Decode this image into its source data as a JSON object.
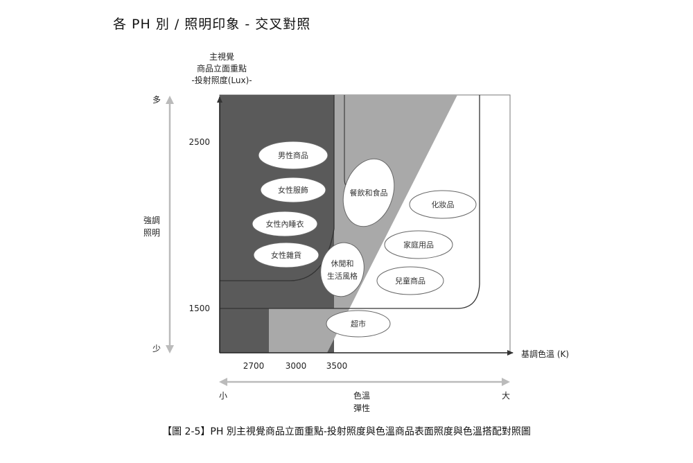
{
  "page_title": "各 PH 別 / 照明印象 - 交叉對照",
  "y_axis": {
    "title_lines": [
      "主視覺",
      "商品立面重點",
      "-投射照度(Lux)-"
    ],
    "ticks": [
      "2500",
      "1500"
    ]
  },
  "x_axis": {
    "title": "基調色溫 (K)",
    "ticks": [
      "2700",
      "3000",
      "3500"
    ]
  },
  "left_arrow": {
    "top_label": "多",
    "bottom_label": "少",
    "middle_label_lines": [
      "強調",
      "照明"
    ]
  },
  "bottom_arrow": {
    "left_label": "小",
    "right_label": "大",
    "middle_label_lines": [
      "色溫",
      "彈性"
    ]
  },
  "categories": [
    "男性商品",
    "女性服飾",
    "女性內睡衣",
    "女性雜貨",
    "餐飲和食品",
    "化妝品",
    "家庭用品",
    "休閒和\n生活風格",
    "兒童商品",
    "超市"
  ],
  "colors": {
    "dark_zone": "#5a5a5a",
    "mid_zone": "#a9a9a9",
    "light_zone": "#ffffff",
    "outline": "#333333"
  },
  "caption": "【圖 2-5】PH 別主視覺商品立面重點-投射照度與色溫商品表面照度與色溫搭配對照圖"
}
